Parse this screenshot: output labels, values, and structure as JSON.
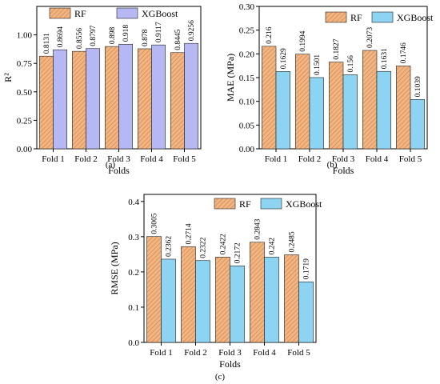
{
  "chart_data": [
    {
      "type": "bar",
      "panel_label": "(a)",
      "categories": [
        "Fold 1",
        "Fold 2",
        "Fold 3",
        "Fold 4",
        "Fold 5"
      ],
      "xlabel": "Folds",
      "ylabel": "R²",
      "ylim": [
        0,
        1.25
      ],
      "yticks": [
        0.0,
        0.25,
        0.5,
        0.75,
        1.0
      ],
      "ytick_labels": [
        "0.00",
        "0.25",
        "0.50",
        "0.75",
        "1.00"
      ],
      "legend_position": "top",
      "series": [
        {
          "name": "RF",
          "color": "#F2B582",
          "pattern": "hatch",
          "values": [
            0.8131,
            0.8556,
            0.898,
            0.878,
            0.8445
          ],
          "labels": [
            "0.8131",
            "0.8556",
            "0.898",
            "0.878",
            "0.8445"
          ]
        },
        {
          "name": "XGBoost",
          "color": "#B6B8F4",
          "pattern": "solid",
          "values": [
            0.8694,
            0.8797,
            0.918,
            0.9117,
            0.9256
          ],
          "labels": [
            "0.8694",
            "0.8797",
            "0.918",
            "0.9117",
            "0.9256"
          ]
        }
      ]
    },
    {
      "type": "bar",
      "panel_label": "(b)",
      "categories": [
        "Fold 1",
        "Fold 2",
        "Fold 3",
        "Fold 4",
        "Fold 5"
      ],
      "xlabel": "Folds",
      "ylabel": "MAE (MPa)",
      "ylim": [
        0,
        0.3
      ],
      "yticks": [
        0.0,
        0.05,
        0.1,
        0.15,
        0.2,
        0.25,
        0.3
      ],
      "ytick_labels": [
        "0.00",
        "0.05",
        "0.10",
        "0.15",
        "0.20",
        "0.25",
        "0.30"
      ],
      "legend_position": "top-right",
      "series": [
        {
          "name": "RF",
          "color": "#F2B582",
          "pattern": "hatch",
          "values": [
            0.216,
            0.1994,
            0.1827,
            0.2073,
            0.1746
          ],
          "labels": [
            "0.216",
            "0.1994",
            "0.1827",
            "0.2073",
            "0.1746"
          ]
        },
        {
          "name": "XGBoost",
          "color": "#8DD3F2",
          "pattern": "solid",
          "values": [
            0.1629,
            0.1501,
            0.156,
            0.1631,
            0.1039
          ],
          "labels": [
            "0.1629",
            "0.1501",
            "0.156",
            "0.1631",
            "0.1039"
          ]
        }
      ]
    },
    {
      "type": "bar",
      "panel_label": "(c)",
      "categories": [
        "Fold 1",
        "Fold 2",
        "Fold 3",
        "Fold 4",
        "Fold 5"
      ],
      "xlabel": "Folds",
      "ylabel": "RMSE (MPa)",
      "ylim": [
        0,
        0.42
      ],
      "yticks": [
        0.0,
        0.1,
        0.2,
        0.3,
        0.4
      ],
      "ytick_labels": [
        "0.0",
        "0.1",
        "0.2",
        "0.3",
        "0.4"
      ],
      "legend_position": "top-right",
      "series": [
        {
          "name": "RF",
          "color": "#F2B582",
          "pattern": "hatch",
          "values": [
            0.3005,
            0.2714,
            0.2422,
            0.2843,
            0.2485
          ],
          "labels": [
            "0.3005",
            "0.2714",
            "0.2422",
            "0.2843",
            "0.2485"
          ]
        },
        {
          "name": "XGBoost",
          "color": "#8DD3F2",
          "pattern": "solid",
          "values": [
            0.2362,
            0.2322,
            0.2172,
            0.242,
            0.1719
          ],
          "labels": [
            "0.2362",
            "0.2322",
            "0.2172",
            "0.242",
            "0.1719"
          ]
        }
      ]
    }
  ]
}
